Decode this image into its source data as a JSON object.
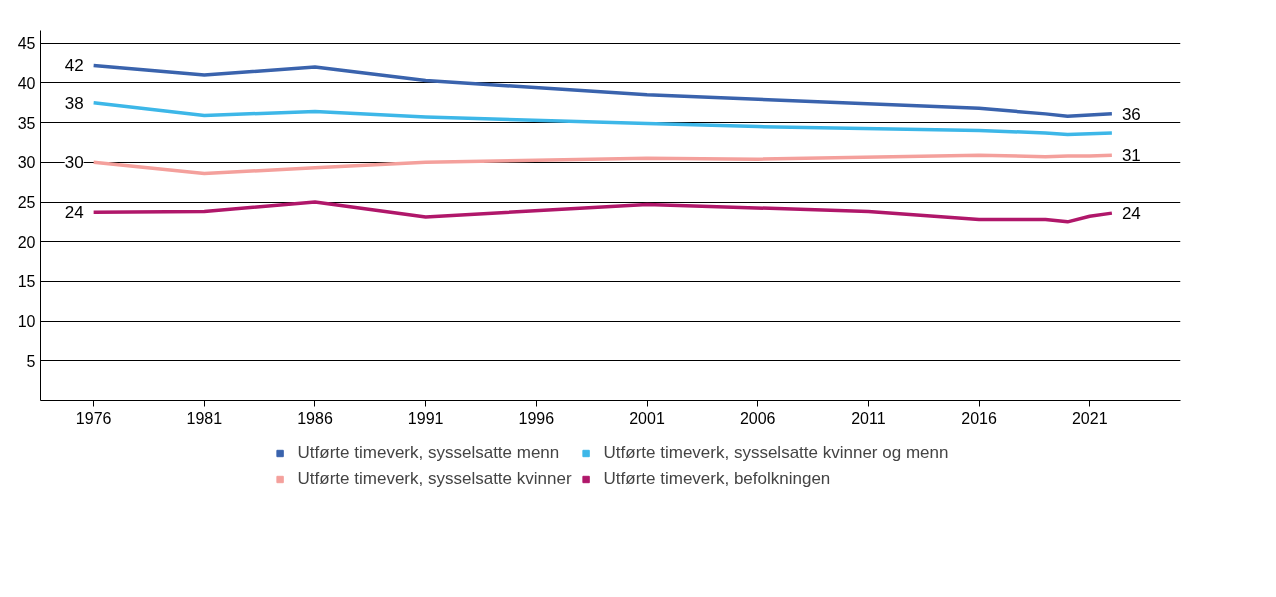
{
  "chart_data": {
    "type": "line",
    "xlim": [
      1973.6,
      2025.1
    ],
    "ylim": [
      0,
      46.6
    ],
    "xticks": [
      1976,
      1981,
      1986,
      1991,
      1996,
      2001,
      2006,
      2011,
      2016,
      2021
    ],
    "yticks": [
      5,
      10,
      15,
      20,
      25,
      30,
      35,
      40,
      45
    ],
    "grid": "y",
    "legend": "bottom",
    "marker": "none",
    "line_style": "solid",
    "series": [
      {
        "name": "Utførte timeverk, sysselsatte menn",
        "color": "#3a63ad",
        "x": [
          1976,
          1981,
          1986,
          1991,
          2001,
          2016,
          2019,
          2020,
          2022
        ],
        "values": [
          42.2,
          41.0,
          42.0,
          40.3,
          38.5,
          36.8,
          36.1,
          35.8,
          36.1
        ],
        "value_labels": [
          "42",
          null,
          null,
          null,
          null,
          null,
          null,
          null,
          "36"
        ]
      },
      {
        "name": "Utførte timeverk, sysselsatte kvinner og menn",
        "color": "#3db7e8",
        "x": [
          1976,
          1981,
          1986,
          1991,
          2001,
          2006,
          2016,
          2019,
          2020,
          2022
        ],
        "values": [
          37.5,
          35.9,
          36.4,
          35.7,
          34.9,
          34.5,
          34.0,
          33.7,
          33.5,
          33.7
        ],
        "value_labels": [
          "38",
          null,
          null,
          null,
          null,
          null,
          null,
          null,
          null,
          null
        ]
      },
      {
        "name": "Utførte timeverk, sysselsatte kvinner",
        "color": "#f4a09c",
        "x": [
          1976,
          1981,
          1986,
          1991,
          2001,
          2006,
          2016,
          2019,
          2020,
          2021,
          2022
        ],
        "values": [
          30.0,
          28.6,
          29.3,
          30.0,
          30.5,
          30.4,
          30.9,
          30.7,
          30.8,
          30.8,
          30.9
        ],
        "value_labels": [
          "30",
          null,
          null,
          null,
          null,
          null,
          null,
          null,
          null,
          null,
          "31"
        ]
      },
      {
        "name": "Utførte timeverk, befolkningen",
        "color": "#b0176a",
        "x": [
          1976,
          1981,
          1986,
          1991,
          2001,
          2011,
          2016,
          2019,
          2020,
          2021,
          2022
        ],
        "values": [
          23.7,
          23.8,
          25.0,
          23.1,
          24.7,
          23.8,
          22.8,
          22.8,
          22.5,
          23.2,
          23.6
        ],
        "value_labels": [
          "24",
          null,
          null,
          null,
          null,
          null,
          null,
          null,
          null,
          null,
          "24"
        ]
      }
    ]
  }
}
